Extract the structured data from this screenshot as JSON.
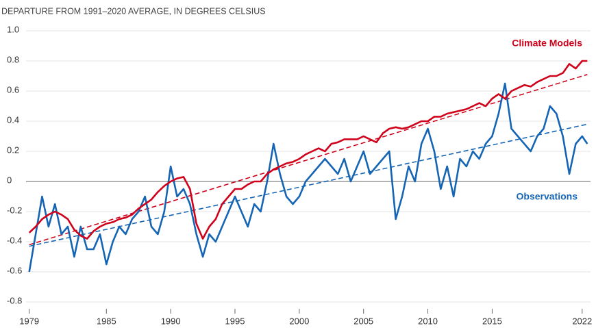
{
  "chart_data": {
    "type": "line",
    "title": "DEPARTURE FROM 1991–2020 AVERAGE, IN DEGREES CELSIUS",
    "annotations": [
      "Climate Models",
      "Observations"
    ],
    "x": [
      1979,
      1979.5,
      1980,
      1980.5,
      1981,
      1981.5,
      1982,
      1982.5,
      1983,
      1983.5,
      1984,
      1984.5,
      1985,
      1985.5,
      1986,
      1986.5,
      1987,
      1987.5,
      1988,
      1988.5,
      1989,
      1989.5,
      1990,
      1990.5,
      1991,
      1991.5,
      1992,
      1992.5,
      1993,
      1993.5,
      1994,
      1994.5,
      1995,
      1995.5,
      1996,
      1996.5,
      1997,
      1997.5,
      1998,
      1998.5,
      1999,
      1999.5,
      2000,
      2000.5,
      2001,
      2001.5,
      2002,
      2002.5,
      2003,
      2003.5,
      2004,
      2004.5,
      2005,
      2005.5,
      2006,
      2006.5,
      2007,
      2007.5,
      2008,
      2008.5,
      2009,
      2009.5,
      2010,
      2010.5,
      2011,
      2011.5,
      2012,
      2012.5,
      2013,
      2013.5,
      2014,
      2014.5,
      2015,
      2015.5,
      2016,
      2016.5,
      2017,
      2017.5,
      2018,
      2018.5,
      2019,
      2019.5,
      2020,
      2020.5,
      2021,
      2021.5,
      2022,
      2022.4
    ],
    "series": [
      {
        "name": "Climate Models",
        "color": "#d0021b",
        "values": [
          -0.34,
          -0.3,
          -0.25,
          -0.22,
          -0.2,
          -0.22,
          -0.25,
          -0.32,
          -0.36,
          -0.38,
          -0.33,
          -0.3,
          -0.28,
          -0.27,
          -0.25,
          -0.24,
          -0.22,
          -0.18,
          -0.15,
          -0.12,
          -0.07,
          -0.03,
          0.0,
          0.02,
          0.03,
          -0.05,
          -0.28,
          -0.38,
          -0.3,
          -0.25,
          -0.15,
          -0.1,
          -0.05,
          -0.05,
          -0.02,
          0.0,
          0.0,
          0.05,
          0.08,
          0.1,
          0.12,
          0.13,
          0.15,
          0.18,
          0.2,
          0.22,
          0.2,
          0.25,
          0.26,
          0.28,
          0.28,
          0.28,
          0.3,
          0.28,
          0.26,
          0.32,
          0.35,
          0.36,
          0.35,
          0.36,
          0.38,
          0.4,
          0.4,
          0.43,
          0.43,
          0.45,
          0.46,
          0.47,
          0.48,
          0.5,
          0.52,
          0.5,
          0.55,
          0.58,
          0.55,
          0.6,
          0.62,
          0.64,
          0.63,
          0.66,
          0.68,
          0.7,
          0.7,
          0.72,
          0.78,
          0.75,
          0.8,
          0.8
        ]
      },
      {
        "name": "Observations",
        "color": "#1565b4",
        "values": [
          -0.6,
          -0.35,
          -0.1,
          -0.3,
          -0.15,
          -0.35,
          -0.3,
          -0.5,
          -0.3,
          -0.45,
          -0.45,
          -0.35,
          -0.55,
          -0.4,
          -0.3,
          -0.35,
          -0.25,
          -0.2,
          -0.1,
          -0.3,
          -0.35,
          -0.2,
          0.1,
          -0.1,
          -0.05,
          -0.15,
          -0.35,
          -0.5,
          -0.35,
          -0.4,
          -0.3,
          -0.2,
          -0.1,
          -0.2,
          -0.3,
          -0.15,
          -0.2,
          0.0,
          0.25,
          0.05,
          -0.1,
          -0.15,
          -0.1,
          0.0,
          0.05,
          0.1,
          0.15,
          0.1,
          0.05,
          0.15,
          0.0,
          0.1,
          0.2,
          0.05,
          0.1,
          0.15,
          0.2,
          -0.25,
          -0.1,
          0.1,
          0.0,
          0.25,
          0.35,
          0.2,
          -0.05,
          0.1,
          -0.1,
          0.15,
          0.1,
          0.2,
          0.15,
          0.25,
          0.3,
          0.45,
          0.65,
          0.35,
          0.3,
          0.25,
          0.2,
          0.3,
          0.35,
          0.5,
          0.45,
          0.3,
          0.05,
          0.25,
          0.3,
          0.25
        ]
      }
    ],
    "trends": [
      {
        "color": "#d0021b",
        "x": [
          1979,
          2022.4
        ],
        "values": [
          -0.42,
          0.71
        ]
      },
      {
        "color": "#1565b4",
        "x": [
          1979,
          2022.4
        ],
        "values": [
          -0.43,
          0.38
        ]
      }
    ],
    "xlim": [
      1978.75,
      2022.65
    ],
    "xticks": [
      1979,
      1985,
      1990,
      1995,
      2000,
      2005,
      2010,
      2015,
      2022
    ],
    "ylim": [
      -0.8,
      1.0
    ],
    "yticks": [
      {
        "value": 1.0,
        "label": "1.0"
      },
      0.8,
      0.6,
      0.4,
      0.2,
      0,
      -0.2,
      -0.4,
      -0.6,
      -0.8
    ],
    "grid": true
  }
}
